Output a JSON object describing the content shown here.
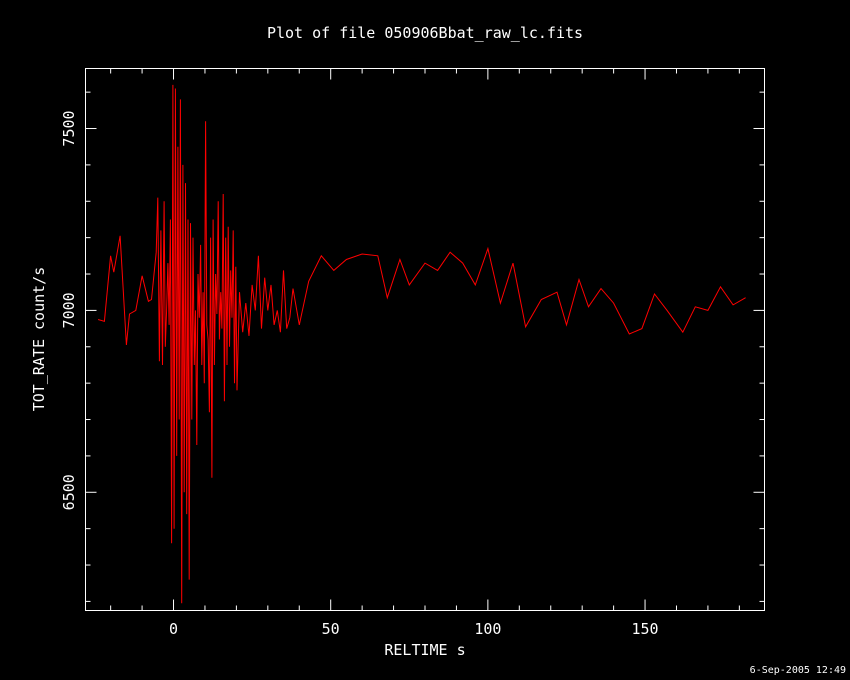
{
  "chart_data": {
    "type": "line",
    "title": "Plot of file 050906Bbat_raw_lc.fits",
    "xlabel": "RELTIME  s",
    "ylabel": "TOT_RATE  count/s",
    "timestamp": "6-Sep-2005 12:49",
    "xlim": [
      -28,
      188
    ],
    "ylim": [
      6175,
      7665
    ],
    "x_ticks": [
      0,
      50,
      100,
      150
    ],
    "y_ticks": [
      6500,
      7000,
      7500
    ],
    "grid": false,
    "legend": "none",
    "colors": {
      "background": "#000000",
      "axes": "#ffffff",
      "series": "#ff0000"
    },
    "series": [
      {
        "x": [
          -24.0,
          -22.0,
          -20.0,
          -19.0,
          -17.0,
          -15.0,
          -14.0,
          -12.0,
          -10.0,
          -8.0,
          -7.0,
          -5.5,
          -5.0,
          -4.5,
          -4.0,
          -3.5,
          -3.0,
          -2.6,
          -2.2,
          -1.8,
          -1.4,
          -1.0,
          -0.6,
          -0.2,
          0.2,
          0.6,
          1.0,
          1.4,
          1.8,
          2.2,
          2.6,
          3.0,
          3.4,
          3.8,
          4.2,
          4.6,
          5.0,
          5.4,
          5.8,
          6.2,
          6.6,
          7.0,
          7.4,
          7.8,
          8.2,
          8.6,
          9.0,
          9.4,
          9.8,
          10.2,
          10.6,
          11.0,
          11.4,
          11.8,
          12.2,
          12.6,
          13.0,
          13.4,
          13.8,
          14.2,
          14.6,
          15.0,
          15.4,
          15.8,
          16.2,
          16.6,
          17.0,
          17.4,
          17.8,
          18.2,
          18.6,
          19.0,
          19.4,
          19.8,
          20.2,
          21.0,
          22.0,
          23.0,
          24.0,
          25.0,
          26.0,
          27.0,
          28.0,
          29.0,
          30.0,
          31.0,
          32.0,
          33.0,
          34.0,
          35.0,
          36.0,
          37.0,
          38.0,
          40.0,
          43.0,
          47.0,
          51.0,
          55.0,
          60.0,
          65.0,
          68.0,
          72.0,
          75.0,
          80.0,
          84.0,
          88.0,
          92.0,
          96.0,
          100.0,
          104.0,
          108.0,
          112.0,
          117.0,
          122.0,
          125.0,
          129.0,
          132.0,
          136.0,
          140.0,
          145.0,
          149.0,
          153.0,
          157.0,
          162.0,
          166.0,
          170.0,
          174.0,
          178.0,
          182.0
        ],
        "y": [
          6975,
          6970,
          7150,
          7105,
          7205,
          6905,
          6990,
          7000,
          7095,
          7025,
          7030,
          7160,
          7310,
          6860,
          7220,
          6850,
          7300,
          6900,
          7000,
          7130,
          6960,
          7250,
          6360,
          7620,
          6400,
          7610,
          6600,
          7450,
          6700,
          7580,
          6195,
          7400,
          6500,
          7350,
          6440,
          7250,
          6260,
          7240,
          6700,
          7200,
          6850,
          7000,
          6630,
          7100,
          6980,
          7180,
          6850,
          7050,
          6800,
          7520,
          6960,
          6920,
          6720,
          7200,
          6540,
          7250,
          6850,
          7100,
          6990,
          7300,
          6920,
          7050,
          6950,
          7320,
          6750,
          7200,
          6850,
          7230,
          6900,
          7110,
          6980,
          7220,
          6800,
          7120,
          6780,
          7050,
          6940,
          7020,
          6930,
          7070,
          7000,
          7150,
          6950,
          7090,
          7000,
          7070,
          6960,
          7000,
          6940,
          7110,
          6950,
          6980,
          7060,
          6960,
          7080,
          7150,
          7110,
          7140,
          7155,
          7150,
          7035,
          7140,
          7070,
          7130,
          7110,
          7160,
          7130,
          7070,
          7170,
          7020,
          7130,
          6955,
          7030,
          7050,
          6960,
          7085,
          7010,
          7060,
          7020,
          6935,
          6950,
          7045,
          7000,
          6940,
          7010,
          7000,
          7065,
          7015,
          7035
        ]
      }
    ]
  }
}
